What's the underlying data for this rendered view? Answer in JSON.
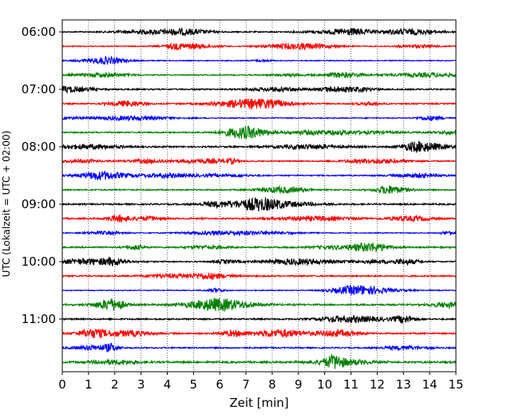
{
  "chart_data": {
    "type": "line",
    "title": "",
    "xlabel": "Zeit  [min]",
    "ylabel": "UTC (Lokalzeit = UTC + 02:00)",
    "xlim": [
      0,
      15
    ],
    "xticks": [
      "0",
      "1",
      "2",
      "3",
      "4",
      "5",
      "6",
      "7",
      "8",
      "9",
      "10",
      "11",
      "12",
      "13",
      "14",
      "15"
    ],
    "yticks": [
      "06:00",
      "07:00",
      "08:00",
      "09:00",
      "10:00",
      "11:00"
    ],
    "trace_interval_minutes": 15,
    "first_trace_utc": "06:00",
    "last_trace_utc": "11:45",
    "trace_colors_cycle": [
      "#000000",
      "#ff0000",
      "#0000ff",
      "#008000"
    ],
    "grid": "vertical dotted",
    "traces": [
      {
        "start": "06:00",
        "color": "#000000",
        "amplitude": 0.8
      },
      {
        "start": "06:15",
        "color": "#ff0000",
        "amplitude": 0.7
      },
      {
        "start": "06:30",
        "color": "#0000ff",
        "amplitude": 0.6
      },
      {
        "start": "06:45",
        "color": "#008000",
        "amplitude": 0.7
      },
      {
        "start": "07:00",
        "color": "#000000",
        "amplitude": 0.9
      },
      {
        "start": "07:15",
        "color": "#ff0000",
        "amplitude": 0.9
      },
      {
        "start": "07:30",
        "color": "#0000ff",
        "amplitude": 0.7
      },
      {
        "start": "07:45",
        "color": "#008000",
        "amplitude": 0.9
      },
      {
        "start": "08:00",
        "color": "#000000",
        "amplitude": 1.0
      },
      {
        "start": "08:15",
        "color": "#ff0000",
        "amplitude": 0.8
      },
      {
        "start": "08:30",
        "color": "#0000ff",
        "amplitude": 0.8
      },
      {
        "start": "08:45",
        "color": "#008000",
        "amplitude": 0.9
      },
      {
        "start": "09:00",
        "color": "#000000",
        "amplitude": 1.0
      },
      {
        "start": "09:15",
        "color": "#ff0000",
        "amplitude": 1.0
      },
      {
        "start": "09:30",
        "color": "#0000ff",
        "amplitude": 0.6
      },
      {
        "start": "09:45",
        "color": "#008000",
        "amplitude": 1.0
      },
      {
        "start": "10:00",
        "color": "#000000",
        "amplitude": 0.8
      },
      {
        "start": "10:15",
        "color": "#ff0000",
        "amplitude": 1.0
      },
      {
        "start": "10:30",
        "color": "#0000ff",
        "amplitude": 0.6
      },
      {
        "start": "10:45",
        "color": "#008000",
        "amplitude": 1.1
      },
      {
        "start": "11:00",
        "color": "#000000",
        "amplitude": 1.0
      },
      {
        "start": "11:15",
        "color": "#ff0000",
        "amplitude": 1.0
      },
      {
        "start": "11:30",
        "color": "#0000ff",
        "amplitude": 0.9
      },
      {
        "start": "11:45",
        "color": "#008000",
        "amplitude": 1.2
      }
    ]
  }
}
